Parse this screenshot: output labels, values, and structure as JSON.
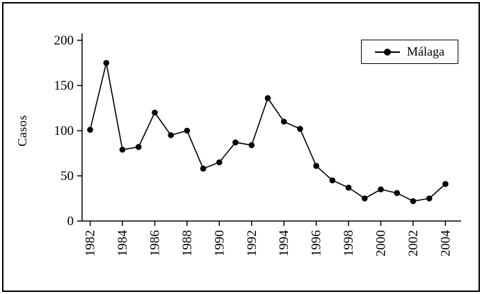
{
  "chart_data": {
    "type": "line",
    "title": "",
    "xlabel": "",
    "ylabel": "Casos",
    "xlim": [
      1981.5,
      2004.5
    ],
    "ylim": [
      0,
      200
    ],
    "yticks": [
      0,
      50,
      100,
      150,
      200
    ],
    "xticks": [
      1982,
      1984,
      1986,
      1988,
      1990,
      1992,
      1994,
      1996,
      1998,
      2000,
      2002,
      2004
    ],
    "grid": false,
    "legend_position": "top-right",
    "series": [
      {
        "name": "Málaga",
        "color": "#000000",
        "marker": "filled-circle",
        "x": [
          1982,
          1983,
          1984,
          1985,
          1986,
          1987,
          1988,
          1989,
          1990,
          1991,
          1992,
          1993,
          1994,
          1995,
          1996,
          1997,
          1998,
          1999,
          2000,
          2001,
          2002,
          2003,
          2004
        ],
        "values": [
          101,
          175,
          79,
          82,
          120,
          95,
          100,
          58,
          65,
          87,
          84,
          136,
          110,
          102,
          61,
          45,
          37,
          25,
          35,
          31,
          22,
          25,
          41
        ]
      }
    ]
  },
  "frame": {
    "border_color": "#000000"
  }
}
